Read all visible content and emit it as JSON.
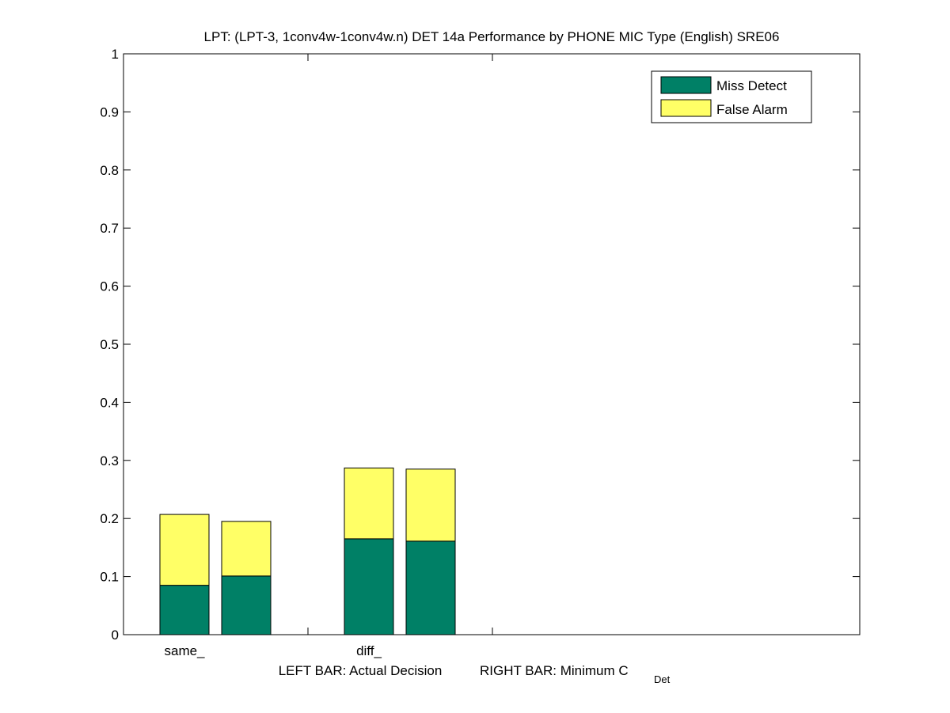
{
  "chart_data": {
    "type": "bar",
    "stacked": true,
    "title": "LPT: (LPT-3, 1conv4w-1conv4w.n) DET 14a Performance by PHONE MIC Type (English) SRE06",
    "xlabel_left": "LEFT BAR: Actual Decision",
    "xlabel_right": "RIGHT BAR: Minimum C",
    "xlabel_right_subscript": "Det",
    "categories": [
      "same_",
      "diff_"
    ],
    "bar_roles": [
      "Actual Decision",
      "Minimum CDet"
    ],
    "series": [
      {
        "name": "Miss Detect",
        "color": "#008066",
        "values": [
          [
            0.085,
            0.101
          ],
          [
            0.165,
            0.161
          ]
        ]
      },
      {
        "name": "False Alarm",
        "color": "#ffff66",
        "values": [
          [
            0.122,
            0.094
          ],
          [
            0.122,
            0.124
          ]
        ]
      }
    ],
    "ylim": [
      0,
      1
    ],
    "yticks": [
      "0",
      "0.1",
      "0.2",
      "0.3",
      "0.4",
      "0.5",
      "0.6",
      "0.7",
      "0.8",
      "0.9",
      "1"
    ],
    "legend": {
      "position": "top-right",
      "entries": [
        "Miss Detect",
        "False Alarm"
      ]
    },
    "grid": false
  }
}
